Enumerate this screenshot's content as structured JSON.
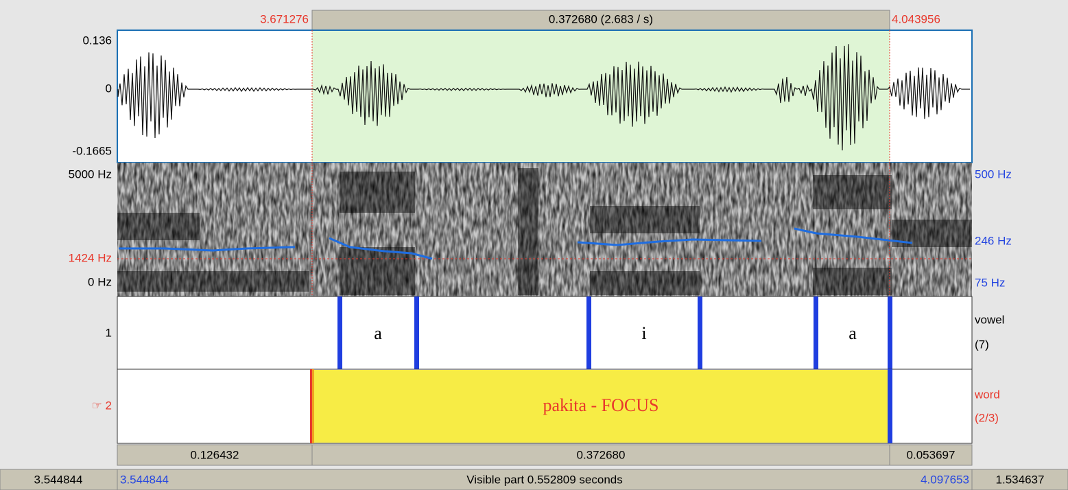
{
  "selection": {
    "start": "3.671276",
    "duration": "0.372680 (2.683 / s)",
    "end": "4.043956"
  },
  "waveform": {
    "max": "0.136",
    "zero": "0",
    "min": "-0.1665"
  },
  "spectrogram": {
    "freq_max": "5000 Hz",
    "cursor_freq": "1424 Hz",
    "freq_min": "0 Hz",
    "pitch_max": "500 Hz",
    "pitch_mid": "246 Hz",
    "pitch_min": "75 Hz"
  },
  "tiers": [
    {
      "number": "1",
      "name": "vowel",
      "count": "(7)",
      "intervals": [
        "a",
        "i",
        "a"
      ]
    },
    {
      "number": "☞ 2",
      "name": "word",
      "count": "(2/3)",
      "intervals": [
        "pakita - FOCUS"
      ]
    }
  ],
  "durations": [
    "0.126432",
    "0.372680",
    "0.053697"
  ],
  "footer": {
    "window_start": "3.544844",
    "visible_start": "3.544844",
    "visible": "Visible part 0.552809 seconds",
    "visible_end": "4.097653",
    "window_end": "1.534637"
  }
}
